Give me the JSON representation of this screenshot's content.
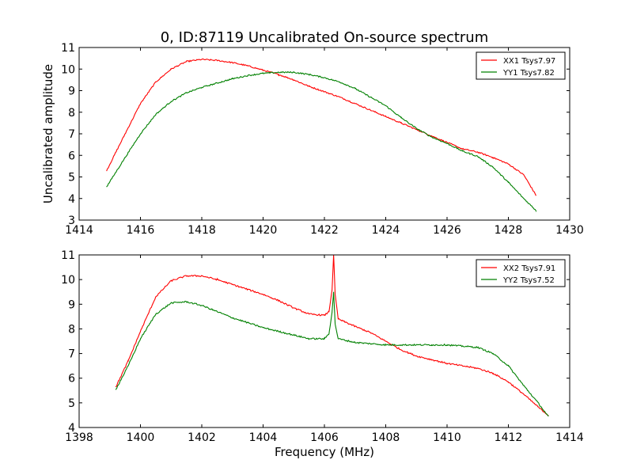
{
  "figure": {
    "title": "0, ID:87119 Uncalibrated On-source spectrum",
    "xlabel": "Frequency (MHz)",
    "ylabel": "Uncalibrated amplitude",
    "colors": {
      "red": "#ff0000",
      "green": "#008000"
    }
  },
  "chart_data": [
    {
      "type": "line",
      "xlim": [
        1414,
        1430
      ],
      "ylim": [
        3,
        11
      ],
      "xticks": [
        1414,
        1416,
        1418,
        1420,
        1422,
        1424,
        1426,
        1428,
        1430
      ],
      "yticks": [
        3,
        4,
        5,
        6,
        7,
        8,
        9,
        10,
        11
      ],
      "legend_position": "top-right",
      "grid": false,
      "series": [
        {
          "name": "XX1 Tsys7.97",
          "color": "#ff0000",
          "x": [
            1414.9,
            1415.5,
            1416.0,
            1416.5,
            1417.0,
            1417.5,
            1418.0,
            1418.5,
            1419.0,
            1419.5,
            1420.0,
            1420.5,
            1421.0,
            1421.5,
            1422.0,
            1422.5,
            1423.0,
            1423.5,
            1424.0,
            1424.5,
            1425.0,
            1425.5,
            1426.0,
            1426.5,
            1427.0,
            1427.5,
            1428.0,
            1428.5,
            1428.9
          ],
          "y": [
            5.3,
            7.0,
            8.4,
            9.4,
            10.0,
            10.35,
            10.45,
            10.4,
            10.3,
            10.15,
            9.95,
            9.75,
            9.5,
            9.2,
            8.95,
            8.7,
            8.4,
            8.1,
            7.8,
            7.5,
            7.2,
            6.9,
            6.6,
            6.3,
            6.15,
            5.9,
            5.6,
            5.1,
            4.15
          ]
        },
        {
          "name": "YY1 Tsys7.82",
          "color": "#008000",
          "x": [
            1414.9,
            1415.5,
            1416.0,
            1416.5,
            1417.0,
            1417.5,
            1418.0,
            1418.5,
            1419.0,
            1419.5,
            1420.0,
            1420.5,
            1421.0,
            1421.5,
            1422.0,
            1422.5,
            1423.0,
            1423.5,
            1424.0,
            1424.5,
            1425.0,
            1425.5,
            1426.0,
            1426.5,
            1427.0,
            1427.5,
            1428.0,
            1428.5,
            1428.9
          ],
          "y": [
            4.55,
            5.9,
            7.0,
            7.9,
            8.5,
            8.9,
            9.15,
            9.35,
            9.55,
            9.7,
            9.8,
            9.85,
            9.85,
            9.75,
            9.6,
            9.4,
            9.1,
            8.7,
            8.3,
            7.75,
            7.25,
            6.85,
            6.55,
            6.2,
            5.95,
            5.45,
            4.75,
            4.0,
            3.45
          ]
        }
      ]
    },
    {
      "type": "line",
      "xlim": [
        1398,
        1414
      ],
      "ylim": [
        4,
        11
      ],
      "xticks": [
        1398,
        1400,
        1402,
        1404,
        1406,
        1408,
        1410,
        1412,
        1414
      ],
      "yticks": [
        4,
        5,
        6,
        7,
        8,
        9,
        10,
        11
      ],
      "legend_position": "top-right",
      "grid": false,
      "series": [
        {
          "name": "XX2 Tsys7.91",
          "color": "#ff0000",
          "x": [
            1399.2,
            1399.6,
            1400.0,
            1400.5,
            1401.0,
            1401.5,
            1402.0,
            1402.5,
            1403.0,
            1403.5,
            1404.0,
            1404.5,
            1405.0,
            1405.5,
            1406.0,
            1406.15,
            1406.25,
            1406.3,
            1406.35,
            1406.45,
            1407.0,
            1407.5,
            1408.0,
            1408.5,
            1409.0,
            1409.5,
            1410.0,
            1410.5,
            1411.0,
            1411.5,
            1412.0,
            1412.5,
            1413.0,
            1413.3
          ],
          "y": [
            5.65,
            6.7,
            7.9,
            9.3,
            9.95,
            10.15,
            10.15,
            10.0,
            9.8,
            9.6,
            9.4,
            9.15,
            8.85,
            8.6,
            8.55,
            8.7,
            9.6,
            11.0,
            9.4,
            8.4,
            8.1,
            7.85,
            7.5,
            7.15,
            6.9,
            6.75,
            6.6,
            6.5,
            6.4,
            6.2,
            5.85,
            5.35,
            4.8,
            4.5
          ]
        },
        {
          "name": "YY2 Tsys7.52",
          "color": "#008000",
          "x": [
            1399.2,
            1399.6,
            1400.0,
            1400.5,
            1401.0,
            1401.5,
            1402.0,
            1402.5,
            1403.0,
            1403.5,
            1404.0,
            1404.5,
            1405.0,
            1405.5,
            1406.0,
            1406.15,
            1406.25,
            1406.3,
            1406.35,
            1406.45,
            1407.0,
            1407.5,
            1408.0,
            1408.5,
            1409.0,
            1409.5,
            1410.0,
            1410.5,
            1411.0,
            1411.5,
            1412.0,
            1412.5,
            1413.0,
            1413.3
          ],
          "y": [
            5.55,
            6.5,
            7.6,
            8.6,
            9.05,
            9.1,
            8.95,
            8.7,
            8.45,
            8.25,
            8.05,
            7.9,
            7.75,
            7.6,
            7.6,
            7.8,
            8.7,
            9.5,
            8.2,
            7.6,
            7.45,
            7.4,
            7.35,
            7.35,
            7.35,
            7.35,
            7.35,
            7.3,
            7.25,
            7.0,
            6.5,
            5.7,
            4.95,
            4.45
          ]
        }
      ]
    }
  ]
}
